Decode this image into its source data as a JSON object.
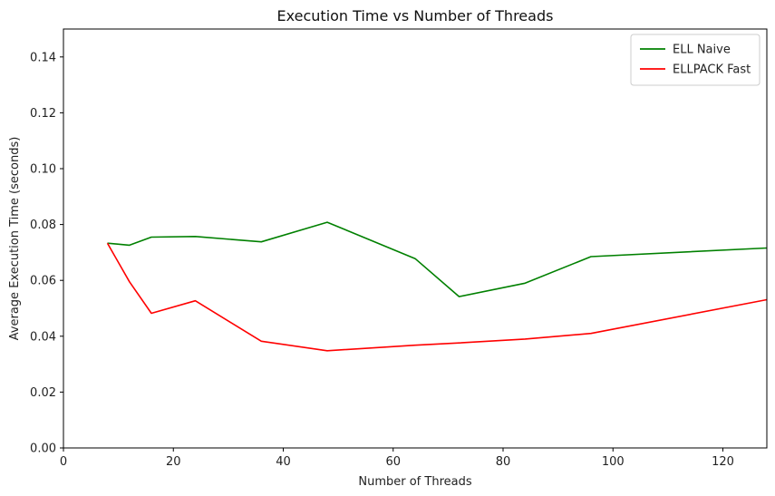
{
  "chart_data": {
    "type": "line",
    "title": "Execution Time vs Number of Threads",
    "xlabel": "Number of Threads",
    "ylabel": "Average Execution Time (seconds)",
    "xlim": [
      0,
      128
    ],
    "ylim": [
      0,
      0.15
    ],
    "xticks": [
      0,
      20,
      40,
      60,
      80,
      100,
      120
    ],
    "yticks": [
      0.0,
      0.02,
      0.04,
      0.06,
      0.08,
      0.1,
      0.12,
      0.14
    ],
    "ytick_labels": [
      "0.00",
      "0.02",
      "0.04",
      "0.06",
      "0.08",
      "0.10",
      "0.12",
      "0.14"
    ],
    "grid": false,
    "legend_position": "top-right",
    "x": [
      8,
      12,
      16,
      24,
      36,
      48,
      64,
      72,
      84,
      96,
      128
    ],
    "series": [
      {
        "name": "ELL Naive",
        "color": "#008000",
        "values": [
          0.0733,
          0.0726,
          0.0755,
          0.0757,
          0.0738,
          0.0808,
          0.0678,
          0.0542,
          0.059,
          0.0685,
          0.0716
        ]
      },
      {
        "name": "ELLPACK Fast",
        "color": "#ff0000",
        "values": [
          0.0733,
          0.0595,
          0.0482,
          0.0527,
          0.0382,
          0.0348,
          0.0368,
          0.0376,
          0.039,
          0.041,
          0.0531
        ]
      }
    ]
  }
}
